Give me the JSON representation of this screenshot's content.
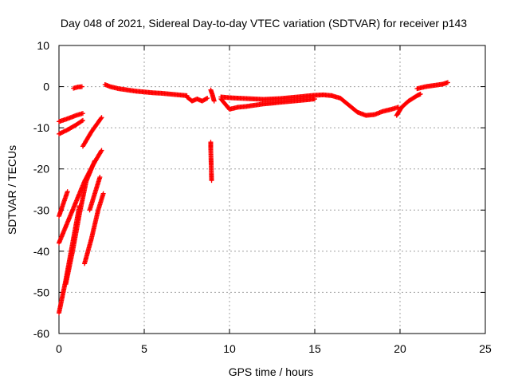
{
  "chart_data": {
    "type": "scatter",
    "title": "Day 048 of 2021, Sidereal Day-to-day VTEC variation (SDTVAR) for receiver p143",
    "xlabel": "GPS time / hours",
    "ylabel": "SDTVAR / TECUs",
    "xlim": [
      0,
      25
    ],
    "ylim": [
      -60,
      10
    ],
    "x_ticks": [
      "0",
      "5",
      "10",
      "15",
      "20",
      "25"
    ],
    "y_ticks": [
      "10",
      "0",
      "-10",
      "-20",
      "-30",
      "-40",
      "-50",
      "-60"
    ],
    "grid": true,
    "marker": "+",
    "series": [
      {
        "name": "SDTVAR",
        "color": "#ff0000",
        "segments": [
          {
            "x": [
              0.0,
              0.5,
              1.0,
              1.4
            ],
            "y": [
              -8.5,
              -7.8,
              -7.0,
              -6.5
            ]
          },
          {
            "x": [
              0.0,
              0.5,
              1.0,
              1.4
            ],
            "y": [
              -11.5,
              -10.5,
              -9.3,
              -8.2
            ]
          },
          {
            "x": [
              0.85,
              1.1,
              1.35
            ],
            "y": [
              -0.4,
              -0.1,
              0.0
            ]
          },
          {
            "x": [
              1.4,
              1.9,
              2.5
            ],
            "y": [
              -14.5,
              -11.0,
              -7.5
            ]
          },
          {
            "x": [
              0.0,
              0.5,
              1.0,
              1.5,
              2.0,
              2.5
            ],
            "y": [
              -38.0,
              -33.0,
              -28.0,
              -23.0,
              -19.0,
              -15.5
            ]
          },
          {
            "x": [
              0.0,
              0.4,
              0.8,
              1.2
            ],
            "y": [
              -55.0,
              -47.0,
              -38.0,
              -29.0
            ]
          },
          {
            "x": [
              0.4,
              0.8,
              1.2,
              1.6,
              2.1
            ],
            "y": [
              -48.0,
              -40.0,
              -31.0,
              -23.0,
              -18.0
            ]
          },
          {
            "x": [
              0.0,
              0.25,
              0.5
            ],
            "y": [
              -31.5,
              -28.5,
              -25.5
            ]
          },
          {
            "x": [
              1.5,
              1.9,
              2.3,
              2.6
            ],
            "y": [
              -43.0,
              -37.0,
              -30.0,
              -26.0
            ]
          },
          {
            "x": [
              1.8,
              2.1,
              2.4
            ],
            "y": [
              -30.0,
              -26.0,
              -22.0
            ]
          },
          {
            "x": [
              8.9,
              9.0,
              9.1
            ],
            "y": [
              -0.8,
              -2.0,
              -3.5
            ]
          },
          {
            "x": [
              8.9,
              8.9,
              8.9,
              8.95
            ],
            "y": [
              -13.5,
              -14.3,
              -15.0,
              -22.8
            ]
          },
          {
            "x": [
              2.7,
              3.0,
              3.5,
              4.0,
              4.5,
              5.0,
              5.5,
              6.0,
              6.5,
              7.0,
              7.5
            ],
            "y": [
              0.5,
              0.0,
              -0.5,
              -0.8,
              -1.1,
              -1.3,
              -1.5,
              -1.6,
              -1.8,
              -2.0,
              -2.2
            ]
          },
          {
            "x": [
              7.5,
              7.8,
              8.1,
              8.4,
              8.7
            ],
            "y": [
              -2.5,
              -3.5,
              -3.0,
              -3.5,
              -2.8
            ]
          },
          {
            "x": [
              9.5,
              10.0,
              10.5,
              11.0,
              11.5,
              12.0,
              12.5,
              13.0,
              13.5,
              14.0,
              14.5,
              15.0,
              15.5,
              16.0
            ],
            "y": [
              -2.5,
              -2.7,
              -2.8,
              -2.9,
              -3.0,
              -3.1,
              -3.0,
              -2.9,
              -2.7,
              -2.5,
              -2.3,
              -2.1,
              -2.0,
              -2.2
            ]
          },
          {
            "x": [
              9.5,
              10.0,
              10.5,
              11.0,
              11.5,
              12.0,
              12.5,
              13.0,
              13.5,
              14.0,
              14.5,
              15.0
            ],
            "y": [
              -3.0,
              -5.5,
              -5.0,
              -4.8,
              -4.5,
              -4.2,
              -4.0,
              -3.8,
              -3.6,
              -3.4,
              -3.2,
              -3.0
            ]
          },
          {
            "x": [
              16.0,
              16.5,
              17.0,
              17.5,
              18.0,
              18.5,
              19.0,
              19.5,
              19.9
            ],
            "y": [
              -2.2,
              -2.8,
              -4.5,
              -6.2,
              -7.0,
              -6.8,
              -6.0,
              -5.5,
              -5.0
            ]
          },
          {
            "x": [
              19.8,
              20.1,
              20.5,
              21.0,
              21.2
            ],
            "y": [
              -7.0,
              -5.0,
              -3.5,
              -2.2,
              -1.8
            ]
          },
          {
            "x": [
              21.0,
              21.5,
              22.0,
              22.5,
              22.8
            ],
            "y": [
              -0.5,
              0.0,
              0.3,
              0.6,
              1.0
            ]
          }
        ]
      }
    ]
  }
}
